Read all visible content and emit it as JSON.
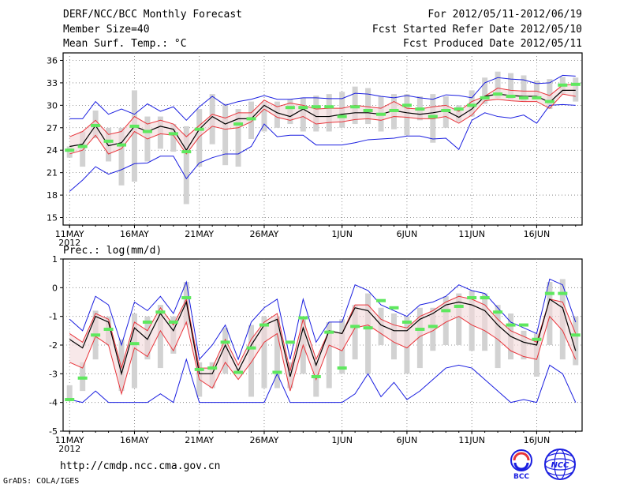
{
  "header": {
    "title": "DERF/NCC/BCC Monthly Forecast",
    "member_size": "Member Size=40",
    "period": "For 2012/05/11-2012/06/19",
    "started": "Fcst Started Refer Date 2012/05/10",
    "produced": "Fcst Produced Date 2012/05/11"
  },
  "footer": {
    "url": "http://cmdp.ncc.cma.gov.cn",
    "grads": "GrADS: COLA/IGES",
    "logo_bcc": "BCC",
    "logo_ncc": "NCC"
  },
  "colors": {
    "ensemble_mean": "#000000",
    "spread": "#e8343a",
    "extremes": "#1a1ee0",
    "members": "#d2d2d2",
    "observed": "#5ee85e"
  },
  "chart_data": [
    {
      "type": "line",
      "title": "Mean Surf. Temp.: °C",
      "x_tick_labels": [
        "11MAY",
        "16MAY",
        "21MAY",
        "26MAY",
        "1JUN",
        "6JUN",
        "11JUN",
        "16JUN"
      ],
      "x_tick_days": [
        1,
        6,
        11,
        16,
        22,
        27,
        32,
        37
      ],
      "year_label": "2012",
      "days": [
        1,
        2,
        3,
        4,
        5,
        6,
        7,
        8,
        9,
        10,
        11,
        12,
        13,
        14,
        15,
        16,
        17,
        18,
        19,
        20,
        21,
        22,
        23,
        24,
        25,
        26,
        27,
        28,
        29,
        30,
        31,
        32,
        33,
        34,
        35,
        36,
        37,
        38,
        39,
        40
      ],
      "ylim": [
        14,
        37
      ],
      "yticks": [
        15,
        18,
        21,
        24,
        27,
        30,
        33,
        36
      ],
      "series": [
        {
          "name": "max",
          "values": [
            28.2,
            28.2,
            30.5,
            28.8,
            29.5,
            28.8,
            30.2,
            29.2,
            29.8,
            28.0,
            29.8,
            31.2,
            30.0,
            30.5,
            30.8,
            31.3,
            30.8,
            30.8,
            31.0,
            31.0,
            30.9,
            30.9,
            31.6,
            31.5,
            31.2,
            31.0,
            31.3,
            31.0,
            30.8,
            31.4,
            31.3,
            31.0,
            33.0,
            33.7,
            33.5,
            33.4,
            32.9,
            33.0,
            34.0,
            33.9
          ]
        },
        {
          "name": "upper",
          "values": [
            25.8,
            26.5,
            28.0,
            26.1,
            26.5,
            28.5,
            27.5,
            28.0,
            27.5,
            25.8,
            27.3,
            28.8,
            28.3,
            29.0,
            29.0,
            30.7,
            29.8,
            30.3,
            30.0,
            29.5,
            29.6,
            29.6,
            30.0,
            29.8,
            29.6,
            30.5,
            29.6,
            29.5,
            29.8,
            30.0,
            29.2,
            30.5,
            31.2,
            32.3,
            32.0,
            31.9,
            31.9,
            31.3,
            32.7,
            32.8
          ]
        },
        {
          "name": "mean",
          "values": [
            24.5,
            24.8,
            27.3,
            24.6,
            25.0,
            27.2,
            26.5,
            27.2,
            26.8,
            24.0,
            26.8,
            28.5,
            27.5,
            28.2,
            28.2,
            30.0,
            29.0,
            28.5,
            29.5,
            28.5,
            28.5,
            28.8,
            29.0,
            29.0,
            28.8,
            29.3,
            29.0,
            28.8,
            29.0,
            29.3,
            28.4,
            29.5,
            31.2,
            31.5,
            31.3,
            31.2,
            31.2,
            30.4,
            32.0,
            32.0
          ]
        },
        {
          "name": "lower",
          "values": [
            23.5,
            24.0,
            26.0,
            23.5,
            24.2,
            26.5,
            25.5,
            26.2,
            26.0,
            23.5,
            25.8,
            27.2,
            26.8,
            27.0,
            27.8,
            29.5,
            28.4,
            28.0,
            28.5,
            27.5,
            27.7,
            27.8,
            28.1,
            28.2,
            28.0,
            28.5,
            28.4,
            28.2,
            28.2,
            28.5,
            27.6,
            28.7,
            30.6,
            30.8,
            30.6,
            30.5,
            30.5,
            29.6,
            31.5,
            31.2
          ]
        },
        {
          "name": "min",
          "values": [
            18.5,
            20.0,
            21.8,
            20.8,
            21.4,
            22.2,
            22.3,
            23.2,
            23.2,
            20.2,
            22.3,
            23.0,
            23.5,
            23.5,
            24.5,
            27.5,
            25.8,
            26.0,
            26.0,
            24.7,
            24.7,
            24.7,
            25.0,
            25.4,
            25.5,
            25.6,
            25.9,
            25.9,
            25.5,
            25.6,
            24.1,
            28.0,
            29.0,
            28.5,
            28.3,
            28.7,
            27.6,
            30.0,
            30.1,
            30.0
          ]
        },
        {
          "name": "obs",
          "values": [
            24.0,
            24.5,
            27.3,
            25.2,
            24.7,
            27.2,
            26.5,
            null,
            26.2,
            23.8,
            26.8,
            null,
            null,
            27.5,
            28.2,
            null,
            null,
            29.7,
            29.7,
            29.8,
            29.8,
            28.5,
            29.8,
            29.3,
            28.8,
            29.3,
            30.0,
            29.5,
            28.5,
            29.3,
            29.5,
            30.0,
            31.0,
            31.5,
            31.2,
            31.0,
            31.0,
            30.5,
            32.7,
            32.8
          ]
        },
        {
          "name": "bar_low",
          "values": [
            23.0,
            21.8,
            25.6,
            22.5,
            19.3,
            19.8,
            22.5,
            24.2,
            23.8,
            16.8,
            21.8,
            24.8,
            22.0,
            21.8,
            25.5,
            26.5,
            27.0,
            27.5,
            26.5,
            26.5,
            26.5,
            27.0,
            27.5,
            27.5,
            26.5,
            26.8,
            26.0,
            28.0,
            25.0,
            27.0,
            27.8,
            28.5,
            30.2,
            31.0,
            30.8,
            30.5,
            31.2,
            29.5,
            31.5,
            30.5
          ]
        },
        {
          "name": "bar_high",
          "values": [
            24.5,
            26.5,
            29.3,
            27.0,
            27.0,
            32.0,
            28.5,
            28.5,
            27.5,
            27.2,
            29.5,
            31.5,
            30.2,
            29.5,
            30.5,
            30.5,
            30.5,
            30.8,
            31.0,
            31.3,
            31.5,
            31.8,
            32.5,
            32.3,
            31.2,
            31.5,
            31.5,
            31.2,
            31.5,
            31.2,
            30.0,
            32.0,
            33.7,
            34.5,
            34.3,
            34.0,
            33.3,
            33.5,
            33.8,
            33.7
          ]
        }
      ]
    },
    {
      "type": "line",
      "title": "Prec.: log(mm/d)",
      "x_tick_labels": [
        "11MAY",
        "16MAY",
        "21MAY",
        "26MAY",
        "1JUN",
        "6JUN",
        "11JUN",
        "16JUN"
      ],
      "x_tick_days": [
        1,
        6,
        11,
        16,
        22,
        27,
        32,
        37
      ],
      "year_label": "2012",
      "days": [
        1,
        2,
        3,
        4,
        5,
        6,
        7,
        8,
        9,
        10,
        11,
        12,
        13,
        14,
        15,
        16,
        17,
        18,
        19,
        20,
        21,
        22,
        23,
        24,
        25,
        26,
        27,
        28,
        29,
        30,
        31,
        32,
        33,
        34,
        35,
        36,
        37,
        38,
        39,
        40
      ],
      "ylim": [
        -5,
        1
      ],
      "yticks": [
        -5,
        -4,
        -3,
        -2,
        -1,
        0,
        1
      ],
      "series": [
        {
          "name": "max",
          "values": [
            -1.1,
            -1.5,
            -0.3,
            -0.6,
            -2.0,
            -0.5,
            -0.8,
            -0.3,
            -0.9,
            0.2,
            -2.5,
            -2.0,
            -1.3,
            -2.5,
            -1.2,
            -0.7,
            -0.4,
            -2.5,
            -0.4,
            -1.9,
            -1.2,
            -1.2,
            0.1,
            -0.1,
            -0.6,
            -0.8,
            -1.0,
            -0.6,
            -0.5,
            -0.3,
            0.1,
            -0.1,
            -0.2,
            -0.7,
            -1.2,
            -1.4,
            -1.6,
            0.3,
            0.1,
            -1.2
          ]
        },
        {
          "name": "upper",
          "values": [
            -1.6,
            -1.9,
            -0.9,
            -1.1,
            -2.8,
            -1.2,
            -1.5,
            -0.7,
            -1.3,
            -0.4,
            -2.8,
            -2.8,
            -1.8,
            -2.7,
            -1.8,
            -1.2,
            -0.9,
            -2.9,
            -1.1,
            -2.5,
            -1.5,
            -1.6,
            -0.6,
            -0.6,
            -1.1,
            -1.3,
            -1.4,
            -1.0,
            -0.8,
            -0.5,
            -0.3,
            -0.4,
            -0.6,
            -1.1,
            -1.5,
            -1.7,
            -1.9,
            -0.4,
            -0.5,
            -1.6
          ]
        },
        {
          "name": "mean",
          "values": [
            -1.8,
            -2.1,
            -1.0,
            -1.2,
            -3.0,
            -1.4,
            -1.8,
            -0.9,
            -1.5,
            -0.5,
            -3.0,
            -3.0,
            -2.0,
            -2.9,
            -2.0,
            -1.3,
            -1.1,
            -3.1,
            -1.4,
            -2.7,
            -1.5,
            -1.6,
            -0.7,
            -0.8,
            -1.3,
            -1.5,
            -1.5,
            -1.1,
            -0.9,
            -0.6,
            -0.5,
            -0.6,
            -0.8,
            -1.3,
            -1.7,
            -1.9,
            -2.0,
            -0.4,
            -0.7,
            -2.2
          ]
        },
        {
          "name": "lower",
          "values": [
            -2.6,
            -2.8,
            -1.7,
            -2.0,
            -3.7,
            -2.1,
            -2.4,
            -1.5,
            -2.2,
            -1.2,
            -3.2,
            -3.5,
            -2.6,
            -3.2,
            -2.6,
            -1.9,
            -1.6,
            -3.6,
            -2.0,
            -3.2,
            -2.0,
            -2.2,
            -1.4,
            -1.3,
            -1.6,
            -1.9,
            -2.1,
            -1.7,
            -1.5,
            -1.2,
            -1.0,
            -1.3,
            -1.5,
            -1.8,
            -2.2,
            -2.4,
            -2.5,
            -1.0,
            -1.5,
            -2.5
          ]
        },
        {
          "name": "min",
          "values": [
            -3.9,
            -4.0,
            -3.6,
            -4.0,
            -4.0,
            -4.0,
            -4.0,
            -3.7,
            -4.0,
            -2.5,
            -4.0,
            -4.0,
            -4.0,
            -4.0,
            -4.0,
            -4.0,
            -3.0,
            -4.0,
            -4.0,
            -4.0,
            -4.0,
            -4.0,
            -3.7,
            -3.0,
            -3.8,
            -3.3,
            -3.9,
            -3.6,
            -3.2,
            -2.8,
            -2.7,
            -2.8,
            -3.2,
            -3.6,
            -4.0,
            -3.9,
            -4.0,
            -2.7,
            -3.0,
            -4.0
          ]
        },
        {
          "name": "obs",
          "values": [
            -3.9,
            -3.15,
            -1.65,
            -1.45,
            null,
            -1.95,
            -1.2,
            -0.85,
            -1.2,
            -0.35,
            -2.85,
            -2.8,
            -1.9,
            -2.95,
            -2.1,
            -1.3,
            -2.95,
            -1.9,
            -1.05,
            -3.1,
            -1.55,
            -2.8,
            -1.35,
            -1.4,
            -0.45,
            -0.7,
            -1.2,
            -1.45,
            -1.35,
            -0.8,
            -0.65,
            -0.35,
            -0.35,
            -0.85,
            -1.3,
            -1.3,
            -1.8,
            -0.2,
            -0.2,
            -1.65
          ]
        },
        {
          "name": "bar_low",
          "values": [
            -3.9,
            -3.6,
            -2.5,
            -2.0,
            -3.6,
            -3.5,
            -2.5,
            -2.8,
            -2.3,
            -1.3,
            -3.8,
            -3.5,
            -3.0,
            -3.0,
            -3.8,
            -3.5,
            -3.5,
            -3.5,
            -3.0,
            -3.8,
            -3.5,
            -3.0,
            -2.5,
            -3.0,
            -2.0,
            -2.5,
            -3.0,
            -2.8,
            -2.2,
            -2.0,
            -2.0,
            -2.2,
            -2.2,
            -2.8,
            -2.5,
            -2.5,
            -3.1,
            -2.0,
            -2.5,
            -2.7
          ]
        },
        {
          "name": "bar_high",
          "values": [
            -3.4,
            -2.6,
            -0.8,
            -1.0,
            -1.8,
            -0.9,
            -1.0,
            -0.6,
            -1.0,
            0.2,
            -2.6,
            -2.6,
            -1.4,
            -2.8,
            -1.3,
            -1.0,
            -1.0,
            -2.6,
            -1.0,
            -2.6,
            -1.2,
            -1.1,
            -0.6,
            -0.2,
            -0.7,
            -0.9,
            -1.0,
            -0.7,
            -0.7,
            -0.3,
            -0.2,
            -0.1,
            -0.2,
            -0.6,
            -0.9,
            -1.5,
            -1.6,
            0.2,
            0.3,
            -1.0
          ]
        }
      ]
    }
  ]
}
